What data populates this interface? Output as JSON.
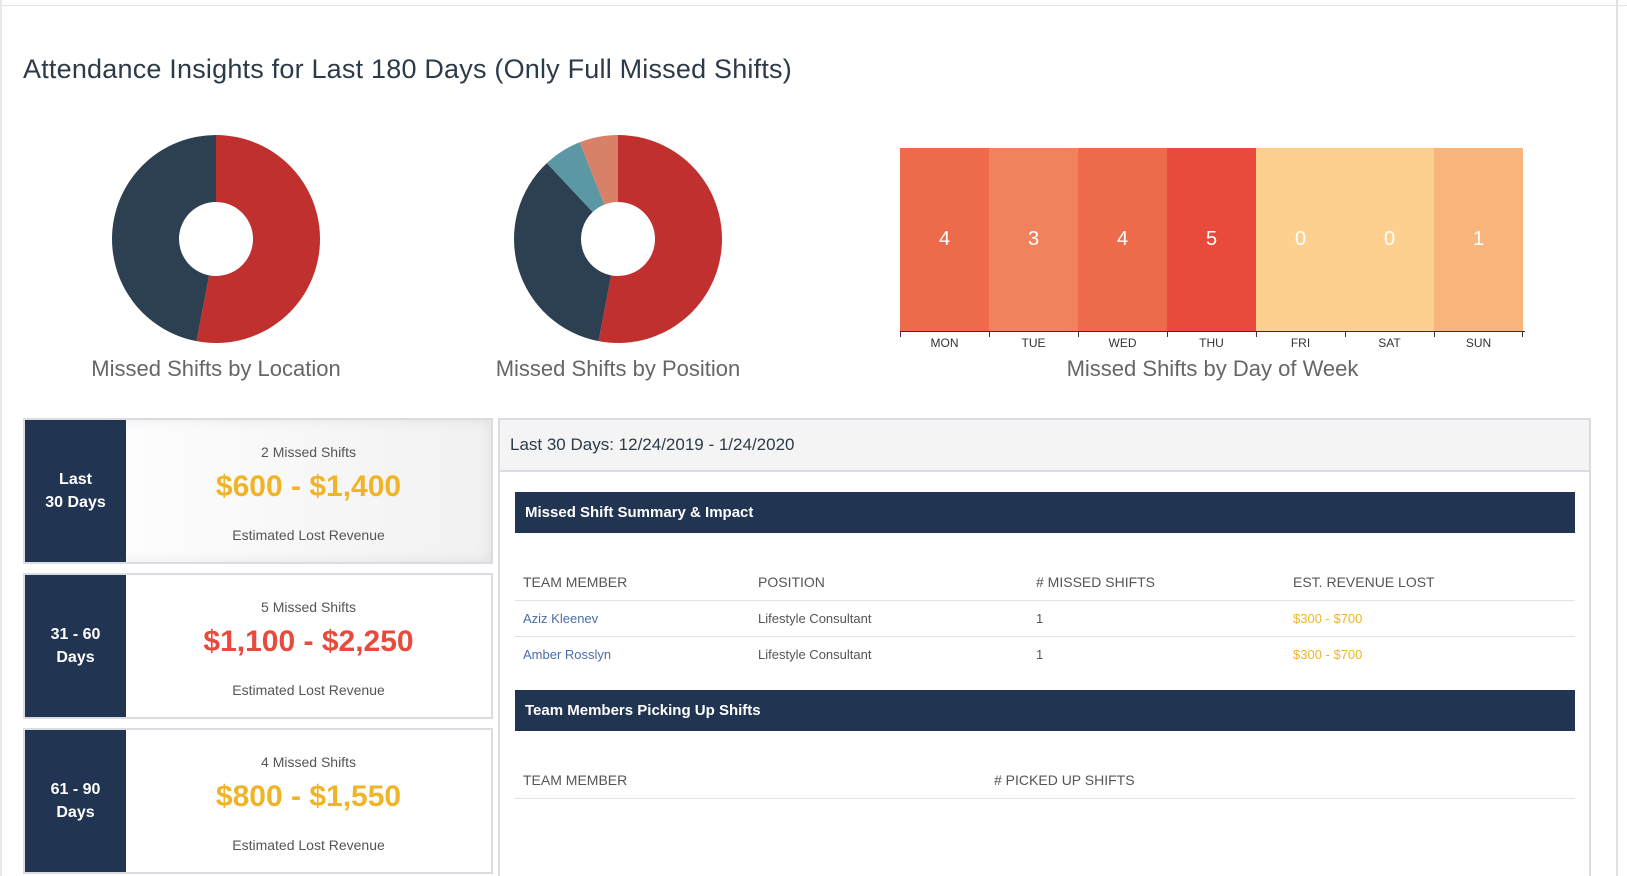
{
  "page": {
    "title": "Attendance Insights for Last 180 Days (Only Full Missed Shifts)"
  },
  "colors": {
    "navy": "#213553",
    "red": "#c0302e",
    "dark_slate": "#2d4052",
    "teal": "#5b98a4",
    "salmon": "#d98068",
    "amber": "#f0b429",
    "crimson": "#e84a3c"
  },
  "charts": {
    "location": {
      "caption": "Missed Shifts by Location",
      "slices": [
        {
          "value": 53,
          "color": "#c0302e"
        },
        {
          "value": 47,
          "color": "#2d4052"
        }
      ]
    },
    "position": {
      "caption": "Missed Shifts by Position",
      "slices": [
        {
          "value": 53,
          "color": "#c0302e"
        },
        {
          "value": 35,
          "color": "#2d4052"
        },
        {
          "value": 6,
          "color": "#5b98a4"
        },
        {
          "value": 6,
          "color": "#d98068"
        }
      ]
    },
    "day_of_week": {
      "caption": "Missed Shifts by Day of Week",
      "days": [
        {
          "label": "MON",
          "value": "4",
          "color": "#ed6a4b"
        },
        {
          "label": "TUE",
          "value": "3",
          "color": "#f0825e"
        },
        {
          "label": "WED",
          "value": "4",
          "color": "#ed6a4b"
        },
        {
          "label": "THU",
          "value": "5",
          "color": "#e84a3c"
        },
        {
          "label": "FRI",
          "value": "0",
          "color": "#fed08f"
        },
        {
          "label": "SAT",
          "value": "0",
          "color": "#fed08f"
        },
        {
          "label": "SUN",
          "value": "1",
          "color": "#f9b57c"
        }
      ]
    }
  },
  "chart_data": [
    {
      "type": "pie",
      "title": "Missed Shifts by Location",
      "values": [
        53,
        47
      ]
    },
    {
      "type": "pie",
      "title": "Missed Shifts by Position",
      "values": [
        53,
        35,
        6,
        6
      ]
    },
    {
      "type": "heatmap",
      "title": "Missed Shifts by Day of Week",
      "categories": [
        "MON",
        "TUE",
        "WED",
        "THU",
        "FRI",
        "SAT",
        "SUN"
      ],
      "values": [
        4,
        3,
        4,
        5,
        0,
        0,
        1
      ]
    }
  ],
  "periods": [
    {
      "label": "Last\n30 Days",
      "count": "2 Missed Shifts",
      "amount": "$600 - $1,400",
      "amount_color": "#f0b429",
      "sub": "Estimated Lost Revenue"
    },
    {
      "label": "31 - 60\nDays",
      "count": "5 Missed Shifts",
      "amount": "$1,100 - $2,250",
      "amount_color": "#e84a3c",
      "sub": "Estimated Lost Revenue"
    },
    {
      "label": "61 - 90\nDays",
      "count": "4 Missed Shifts",
      "amount": "$800 - $1,550",
      "amount_color": "#f0b429",
      "sub": "Estimated Lost Revenue"
    }
  ],
  "detail": {
    "title": "Last 30 Days: 12/24/2019 - 1/24/2020",
    "summary": {
      "heading": "Missed Shift Summary & Impact",
      "columns": [
        "TEAM MEMBER",
        "POSITION",
        "# MISSED SHIFTS",
        "EST. REVENUE LOST"
      ],
      "rows": [
        [
          "Aziz Kleenev",
          "Lifestyle Consultant",
          "1",
          "$300 - $700"
        ],
        [
          "Amber Rosslyn",
          "Lifestyle Consultant",
          "1",
          "$300 - $700"
        ]
      ]
    },
    "pickups": {
      "heading": "Team Members Picking Up Shifts",
      "columns": [
        "TEAM MEMBER",
        "# PICKED UP SHIFTS"
      ]
    }
  }
}
